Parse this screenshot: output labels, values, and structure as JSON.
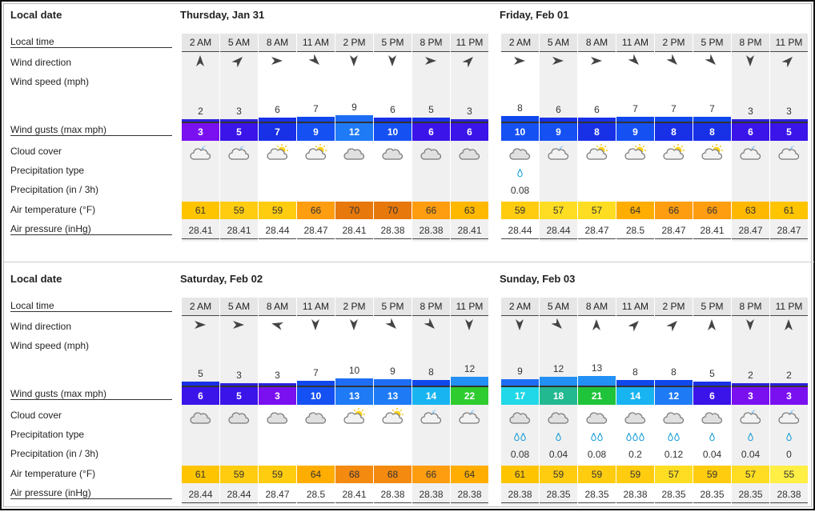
{
  "labels": {
    "local_date": "Local date",
    "local_time": "Local time",
    "wind_direction": "Wind direction",
    "wind_speed": "Wind speed  (mph)",
    "wind_gusts": "Wind gusts  (max mph)",
    "cloud_cover": "Cloud cover",
    "precip_type": "Precipitation type",
    "precipitation": "Precipitation  (in / 3h)",
    "air_temperature": "Air temperature  (°F)",
    "air_pressure": "Air pressure  (inHg)"
  },
  "days": [
    {
      "title": "Thursday, Jan 31",
      "hours": [
        {
          "time": "2 AM",
          "dir": "north",
          "speed": "2",
          "gust": "3",
          "cloud": "partly-cloudy-night",
          "drops": "",
          "precip": "",
          "temp": "61",
          "pressure": "28.41",
          "night": true
        },
        {
          "time": "5 AM",
          "dir": "northeast",
          "speed": "3",
          "gust": "5",
          "cloud": "partly-cloudy-night",
          "drops": "",
          "precip": "",
          "temp": "59",
          "pressure": "28.41",
          "night": true
        },
        {
          "time": "8 AM",
          "dir": "east",
          "speed": "6",
          "gust": "7",
          "cloud": "partly-sunny",
          "drops": "",
          "precip": "",
          "temp": "59",
          "pressure": "28.44",
          "night": false
        },
        {
          "time": "11 AM",
          "dir": "southeast",
          "speed": "7",
          "gust": "9",
          "cloud": "partly-sunny",
          "drops": "",
          "precip": "",
          "temp": "66",
          "pressure": "28.47",
          "night": false
        },
        {
          "time": "2 PM",
          "dir": "south",
          "speed": "9",
          "gust": "12",
          "cloud": "cloudy",
          "drops": "",
          "precip": "",
          "temp": "70",
          "pressure": "28.41",
          "night": false
        },
        {
          "time": "5 PM",
          "dir": "south",
          "speed": "6",
          "gust": "10",
          "cloud": "cloudy",
          "drops": "",
          "precip": "",
          "temp": "70",
          "pressure": "28.38",
          "night": false
        },
        {
          "time": "8 PM",
          "dir": "east",
          "speed": "5",
          "gust": "6",
          "cloud": "cloudy",
          "drops": "",
          "precip": "",
          "temp": "66",
          "pressure": "28.38",
          "night": true
        },
        {
          "time": "11 PM",
          "dir": "northeast",
          "speed": "3",
          "gust": "6",
          "cloud": "cloudy",
          "drops": "",
          "precip": "",
          "temp": "63",
          "pressure": "28.41",
          "night": true
        }
      ]
    },
    {
      "title": "Friday, Feb 01",
      "hours": [
        {
          "time": "2 AM",
          "dir": "east",
          "speed": "8",
          "gust": "10",
          "cloud": "cloudy",
          "drops": "ᵬ",
          "precip": "0.08",
          "temp": "59",
          "pressure": "28.44",
          "night": false
        },
        {
          "time": "5 AM",
          "dir": "east",
          "speed": "6",
          "gust": "9",
          "cloud": "partly-cloudy-night",
          "drops": "",
          "precip": "",
          "temp": "57",
          "pressure": "28.44",
          "night": true
        },
        {
          "time": "8 AM",
          "dir": "east",
          "speed": "6",
          "gust": "8",
          "cloud": "partly-sunny",
          "drops": "",
          "precip": "",
          "temp": "57",
          "pressure": "28.47",
          "night": false
        },
        {
          "time": "11 AM",
          "dir": "southeast",
          "speed": "7",
          "gust": "9",
          "cloud": "partly-sunny",
          "drops": "",
          "precip": "",
          "temp": "64",
          "pressure": "28.5",
          "night": false
        },
        {
          "time": "2 PM",
          "dir": "southeast",
          "speed": "7",
          "gust": "8",
          "cloud": "partly-sunny",
          "drops": "",
          "precip": "",
          "temp": "66",
          "pressure": "28.47",
          "night": false
        },
        {
          "time": "5 PM",
          "dir": "southeast",
          "speed": "7",
          "gust": "8",
          "cloud": "partly-sunny",
          "drops": "",
          "precip": "",
          "temp": "66",
          "pressure": "28.41",
          "night": false
        },
        {
          "time": "8 PM",
          "dir": "south",
          "speed": "3",
          "gust": "6",
          "cloud": "partly-cloudy-night",
          "drops": "",
          "precip": "",
          "temp": "63",
          "pressure": "28.47",
          "night": true
        },
        {
          "time": "11 PM",
          "dir": "northeast",
          "speed": "3",
          "gust": "5",
          "cloud": "partly-cloudy-night",
          "drops": "",
          "precip": "",
          "temp": "61",
          "pressure": "28.47",
          "night": true
        }
      ]
    },
    {
      "title": "Saturday, Feb 02",
      "hours": [
        {
          "time": "2 AM",
          "dir": "east",
          "speed": "5",
          "gust": "6",
          "cloud": "cloudy",
          "drops": "",
          "precip": "",
          "temp": "61",
          "pressure": "28.44",
          "night": true
        },
        {
          "time": "5 AM",
          "dir": "east",
          "speed": "3",
          "gust": "5",
          "cloud": "cloudy",
          "drops": "",
          "precip": "",
          "temp": "59",
          "pressure": "28.44",
          "night": true
        },
        {
          "time": "8 AM",
          "dir": "west-ish",
          "speed": "3",
          "gust": "3",
          "cloud": "cloudy",
          "drops": "",
          "precip": "",
          "temp": "59",
          "pressure": "28.47",
          "night": false
        },
        {
          "time": "11 AM",
          "dir": "south",
          "speed": "7",
          "gust": "10",
          "cloud": "cloudy",
          "drops": "",
          "precip": "",
          "temp": "64",
          "pressure": "28.5",
          "night": false
        },
        {
          "time": "2 PM",
          "dir": "south",
          "speed": "10",
          "gust": "13",
          "cloud": "partly-sunny",
          "drops": "",
          "precip": "",
          "temp": "68",
          "pressure": "28.41",
          "night": false
        },
        {
          "time": "5 PM",
          "dir": "southeast",
          "speed": "9",
          "gust": "13",
          "cloud": "partly-sunny",
          "drops": "",
          "precip": "",
          "temp": "68",
          "pressure": "28.38",
          "night": false
        },
        {
          "time": "8 PM",
          "dir": "southeast",
          "speed": "8",
          "gust": "14",
          "cloud": "partly-cloudy-night",
          "drops": "",
          "precip": "",
          "temp": "66",
          "pressure": "28.38",
          "night": true
        },
        {
          "time": "11 PM",
          "dir": "south",
          "speed": "12",
          "gust": "22",
          "cloud": "partly-cloudy-night",
          "drops": "",
          "precip": "",
          "temp": "64",
          "pressure": "28.38",
          "night": true
        }
      ]
    },
    {
      "title": "Sunday, Feb 03",
      "hours": [
        {
          "time": "2 AM",
          "dir": "south",
          "speed": "9",
          "gust": "17",
          "cloud": "cloudy",
          "drops": "ᵬᵬ",
          "precip": "0.08",
          "temp": "61",
          "pressure": "28.38",
          "night": true
        },
        {
          "time": "5 AM",
          "dir": "southeast",
          "speed": "12",
          "gust": "18",
          "cloud": "cloudy",
          "drops": "ᵬ",
          "precip": "0.04",
          "temp": "59",
          "pressure": "28.35",
          "night": true
        },
        {
          "time": "8 AM",
          "dir": "north",
          "speed": "13",
          "gust": "21",
          "cloud": "cloudy",
          "drops": "ᵬᵬ",
          "precip": "0.08",
          "temp": "59",
          "pressure": "28.35",
          "night": false
        },
        {
          "time": "11 AM",
          "dir": "northeast",
          "speed": "8",
          "gust": "14",
          "cloud": "cloudy",
          "drops": "ᵬᵬᵬ",
          "precip": "0.2",
          "temp": "59",
          "pressure": "28.38",
          "night": false
        },
        {
          "time": "2 PM",
          "dir": "northeast",
          "speed": "8",
          "gust": "12",
          "cloud": "cloudy",
          "drops": "ᵬᵬ",
          "precip": "0.12",
          "temp": "57",
          "pressure": "28.35",
          "night": false
        },
        {
          "time": "5 PM",
          "dir": "north",
          "speed": "5",
          "gust": "6",
          "cloud": "cloudy",
          "drops": "ᵬ",
          "precip": "0.04",
          "temp": "59",
          "pressure": "28.35",
          "night": false
        },
        {
          "time": "8 PM",
          "dir": "south",
          "speed": "2",
          "gust": "3",
          "cloud": "partly-cloudy-night",
          "drops": "ᵬ",
          "precip": "0.04",
          "temp": "57",
          "pressure": "28.35",
          "night": true
        },
        {
          "time": "11 PM",
          "dir": "north",
          "speed": "2",
          "gust": "3",
          "cloud": "partly-cloudy-night",
          "drops": "ᵬ",
          "precip": "0",
          "temp": "55",
          "pressure": "28.38",
          "night": true
        }
      ]
    }
  ]
}
